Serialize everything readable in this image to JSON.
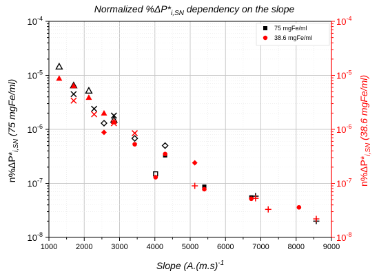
{
  "chart_data": {
    "type": "scatter",
    "title": "Normalized %ΔP*",
    "title_sub": "i,SN",
    "title_rest": " dependency on the slope",
    "xlabel": "Slope (A.(m.s)",
    "xlabel_sup": "-1",
    "ylabel_left": "n%ΔP*",
    "ylabel_left_sub": "i,SN",
    "ylabel_left_rest": " (75 mgFe/ml)",
    "ylabel_right": "n%ΔP*",
    "ylabel_right_sub": "i,SN",
    "ylabel_right_rest": " (38.6 mgFe/ml)",
    "xlim": [
      1000,
      9000
    ],
    "x_ticks": [
      "1000",
      "2000",
      "3000",
      "4000",
      "5000",
      "6000",
      "7000",
      "8000",
      "9000"
    ],
    "ylim": [
      1e-08,
      0.0001
    ],
    "y_scale": "log",
    "y_ticks": [
      "10",
      "10",
      "10",
      "10",
      "10"
    ],
    "y_tick_exponents": [
      "-8",
      "-7",
      "-6",
      "-5",
      "-4"
    ],
    "grid": true,
    "legend": {
      "position": "top-right",
      "entries": [
        {
          "label": "75 mgFe/ml",
          "color": "#000000",
          "marker": "square"
        },
        {
          "label": "38.6 mgFe/ml",
          "color": "#ff0000",
          "marker": "circle"
        }
      ]
    },
    "series": [
      {
        "name": "75 mgFe/ml",
        "color": "#000000",
        "points": [
          {
            "x": 1290,
            "y": 1.45e-05,
            "marker": "triangle-open"
          },
          {
            "x": 1700,
            "y": 6.5e-06,
            "marker": "triangle-open"
          },
          {
            "x": 2130,
            "y": 5.2e-06,
            "marker": "triangle-open"
          },
          {
            "x": 1700,
            "y": 4.5e-06,
            "marker": "x"
          },
          {
            "x": 2280,
            "y": 2.4e-06,
            "marker": "x"
          },
          {
            "x": 2560,
            "y": 1.3e-06,
            "marker": "diamond-open"
          },
          {
            "x": 2840,
            "y": 1.8e-06,
            "marker": "x"
          },
          {
            "x": 2840,
            "y": 1.5e-06,
            "marker": "triangle-open"
          },
          {
            "x": 3430,
            "y": 6.8e-07,
            "marker": "diamond-open"
          },
          {
            "x": 4020,
            "y": 1.5e-07,
            "marker": "square-open"
          },
          {
            "x": 4290,
            "y": 5e-07,
            "marker": "diamond-open"
          },
          {
            "x": 4290,
            "y": 3.3e-07,
            "marker": "square"
          },
          {
            "x": 5400,
            "y": 8.7e-08,
            "marker": "square"
          },
          {
            "x": 6730,
            "y": 5.5e-08,
            "marker": "square"
          },
          {
            "x": 6850,
            "y": 5.8e-08,
            "marker": "plus"
          },
          {
            "x": 8570,
            "y": 2e-08,
            "marker": "plus"
          }
        ]
      },
      {
        "name": "38.6 mgFe/ml",
        "color": "#ff0000",
        "points": [
          {
            "x": 1290,
            "y": 8.8e-06,
            "marker": "triangle"
          },
          {
            "x": 1700,
            "y": 6.4e-06,
            "marker": "triangle"
          },
          {
            "x": 1700,
            "y": 3.4e-06,
            "marker": "x"
          },
          {
            "x": 2130,
            "y": 3.9e-06,
            "marker": "triangle"
          },
          {
            "x": 2280,
            "y": 1.9e-06,
            "marker": "x"
          },
          {
            "x": 2560,
            "y": 2e-06,
            "marker": "triangle"
          },
          {
            "x": 2560,
            "y": 8.8e-07,
            "marker": "diamond"
          },
          {
            "x": 2840,
            "y": 1.4e-06,
            "marker": "triangle"
          },
          {
            "x": 2840,
            "y": 1.3e-06,
            "marker": "x"
          },
          {
            "x": 3430,
            "y": 8.5e-07,
            "marker": "x"
          },
          {
            "x": 3430,
            "y": 5.3e-07,
            "marker": "circle"
          },
          {
            "x": 4020,
            "y": 1.3e-07,
            "marker": "circle"
          },
          {
            "x": 4290,
            "y": 3.5e-07,
            "marker": "circle"
          },
          {
            "x": 5130,
            "y": 2.4e-07,
            "marker": "diamond"
          },
          {
            "x": 5130,
            "y": 9e-08,
            "marker": "plus"
          },
          {
            "x": 5400,
            "y": 7.8e-08,
            "marker": "circle"
          },
          {
            "x": 6730,
            "y": 5.2e-08,
            "marker": "circle"
          },
          {
            "x": 6850,
            "y": 5.3e-08,
            "marker": "plus"
          },
          {
            "x": 7210,
            "y": 3.3e-08,
            "marker": "plus"
          },
          {
            "x": 8080,
            "y": 3.6e-08,
            "marker": "circle"
          },
          {
            "x": 8570,
            "y": 2.2e-08,
            "marker": "plus"
          }
        ]
      }
    ]
  }
}
